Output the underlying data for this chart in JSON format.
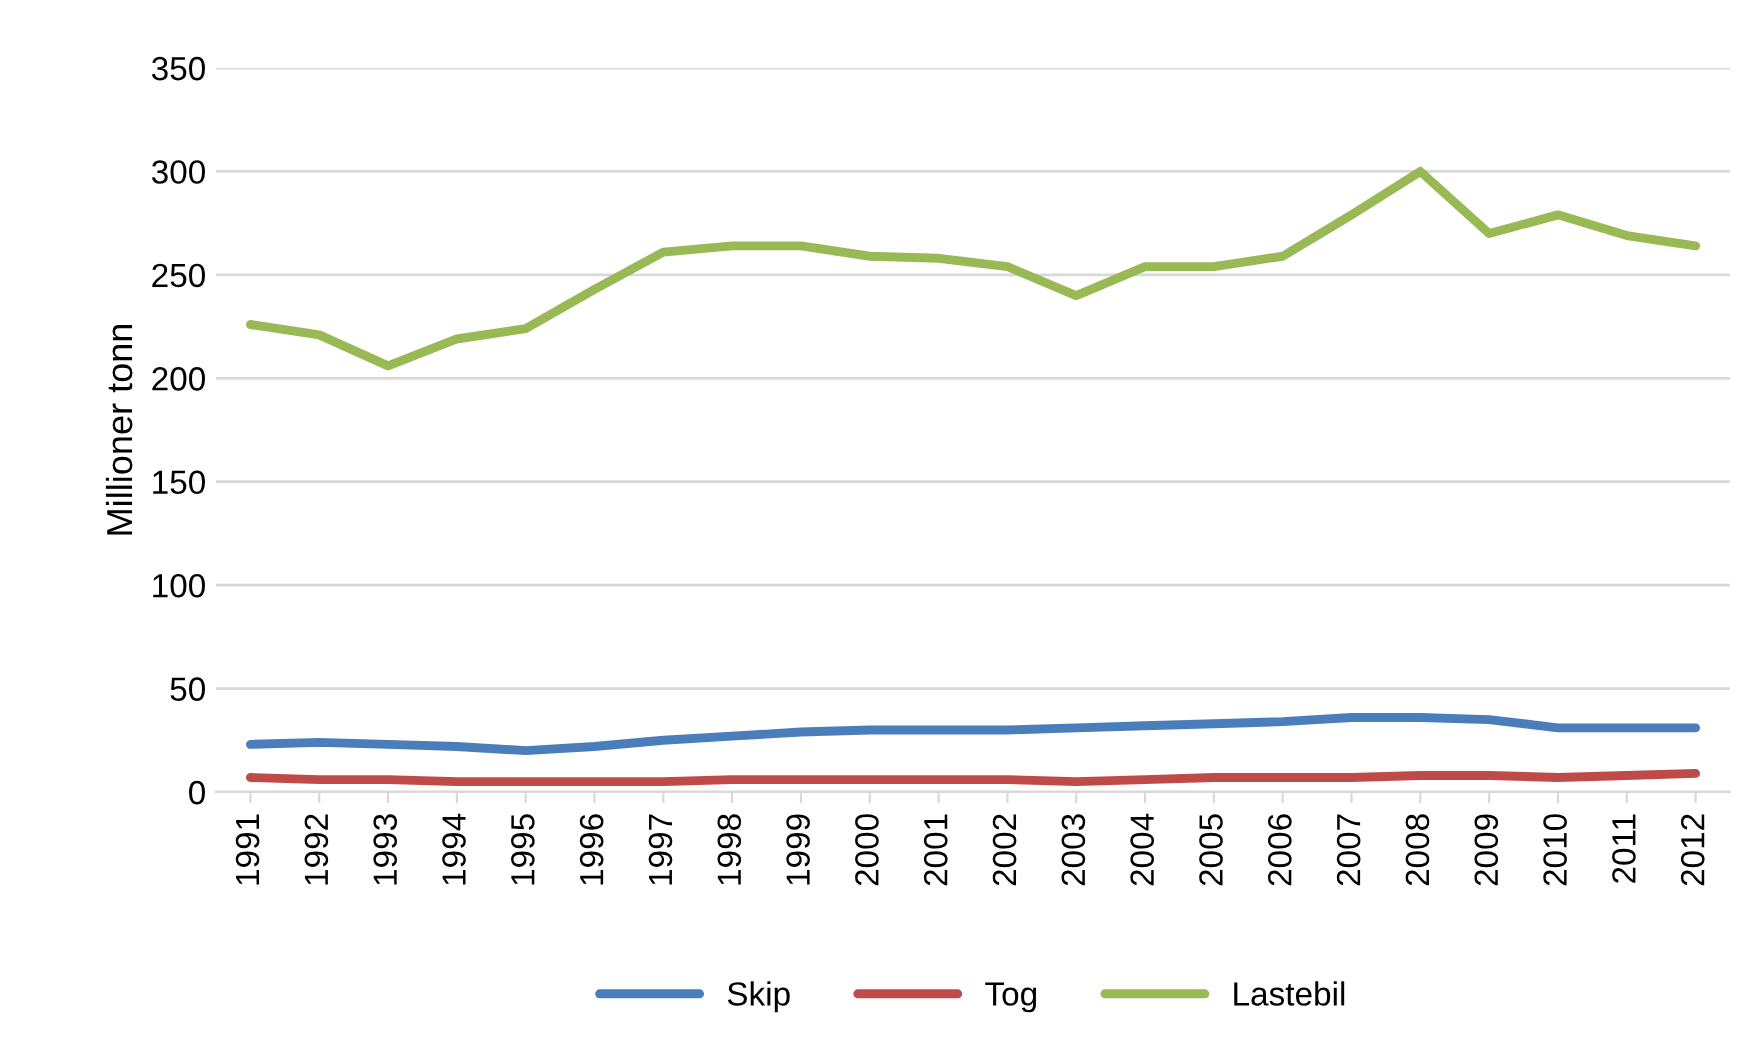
{
  "chart_data": {
    "type": "line",
    "ylabel": "Millioner tonn",
    "categories": [
      "1991",
      "1992",
      "1993",
      "1994",
      "1995",
      "1996",
      "1997",
      "1998",
      "1999",
      "2000",
      "2001",
      "2002",
      "2003",
      "2004",
      "2005",
      "2006",
      "2007",
      "2008",
      "2009",
      "2010",
      "2011",
      "2012"
    ],
    "series": [
      {
        "name": "Skip",
        "color": "#4a7ebb",
        "values": [
          23,
          24,
          23,
          22,
          20,
          22,
          25,
          27,
          29,
          30,
          30,
          30,
          31,
          32,
          33,
          34,
          36,
          36,
          35,
          31,
          31,
          31
        ]
      },
      {
        "name": "Tog",
        "color": "#be4b48",
        "values": [
          7,
          6,
          6,
          5,
          5,
          5,
          5,
          6,
          6,
          6,
          6,
          6,
          5,
          6,
          7,
          7,
          7,
          8,
          8,
          7,
          8,
          9
        ]
      },
      {
        "name": "Lastebil",
        "color": "#98b954",
        "values": [
          226,
          221,
          206,
          219,
          224,
          243,
          261,
          264,
          264,
          259,
          258,
          254,
          240,
          254,
          254,
          259,
          279,
          300,
          270,
          279,
          269,
          264
        ]
      }
    ],
    "ylim": [
      0,
      350
    ],
    "yticks": [
      0,
      50,
      100,
      150,
      200,
      250,
      300,
      350
    ],
    "grid": "y",
    "legend": "bottom",
    "marker": "none",
    "line_style": "solid"
  }
}
